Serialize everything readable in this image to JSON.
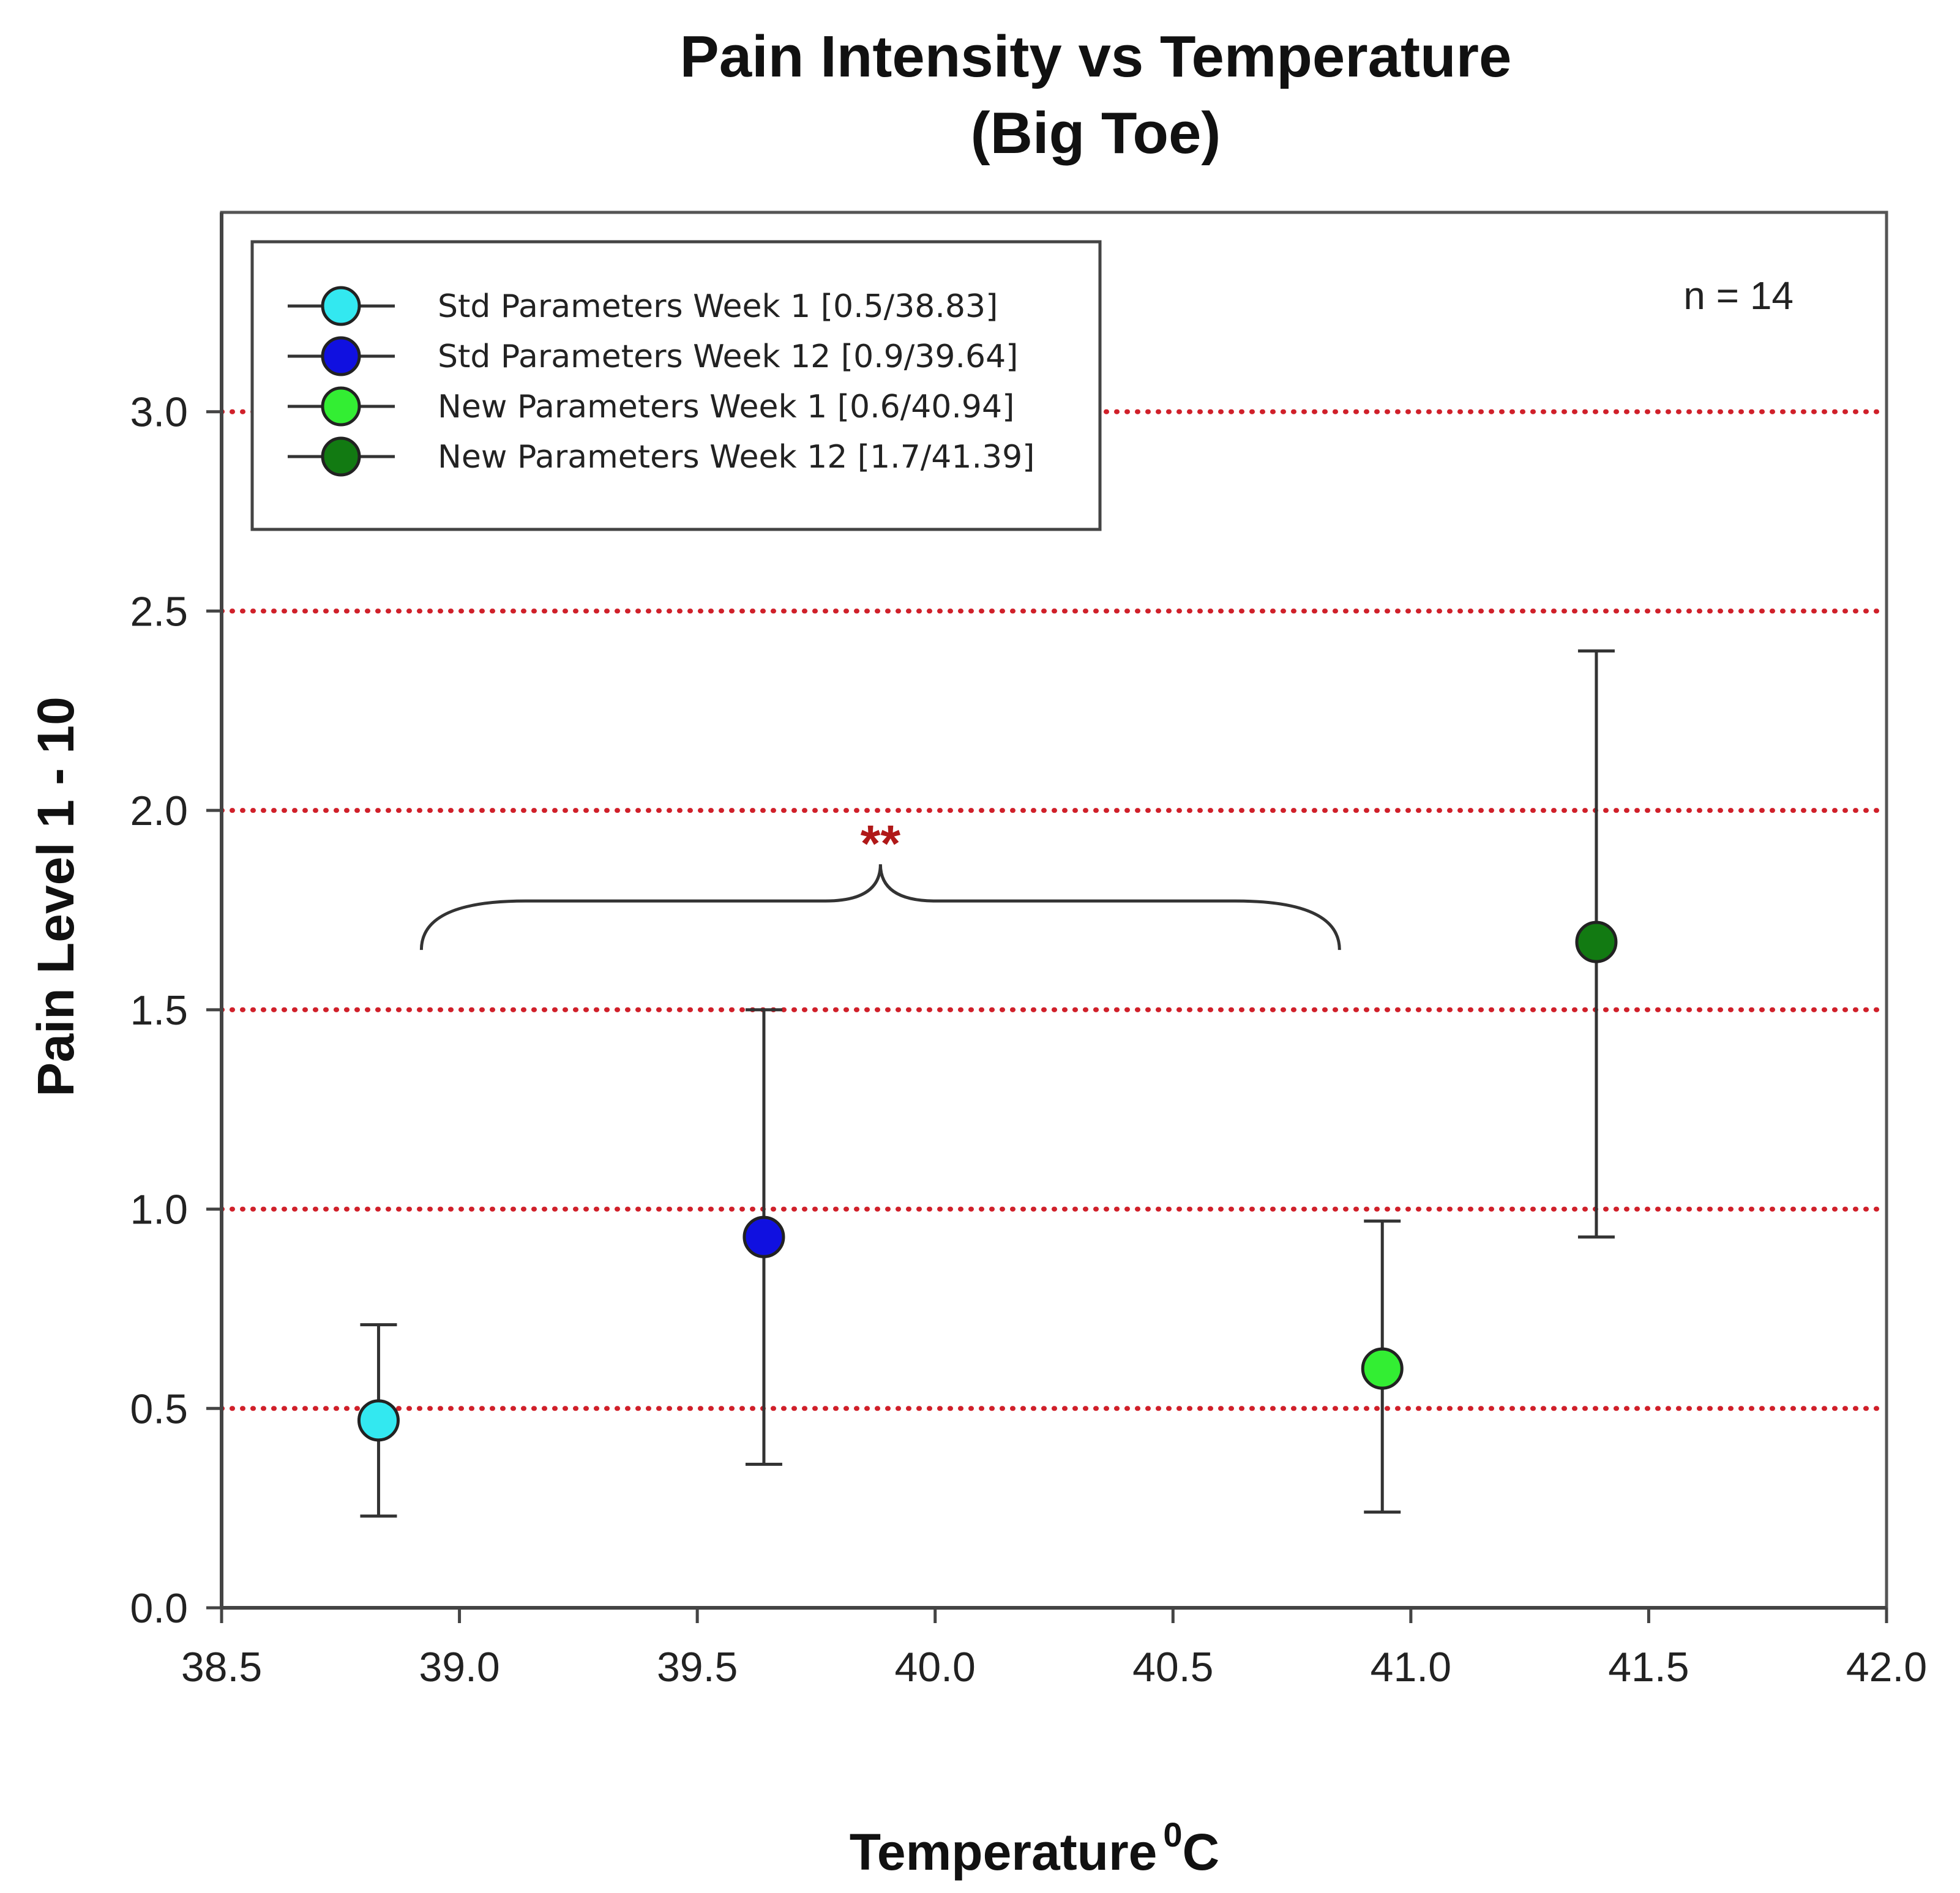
{
  "chart_data": {
    "type": "scatter",
    "title": [
      "Pain Intensity vs Temperature",
      "(Big Toe)"
    ],
    "xlabel": "Temperature",
    "xlabel_superscript": "0",
    "xlabel_unit": "C",
    "ylabel": "Pain Level 1 - 10",
    "xlim": [
      38.5,
      42.0
    ],
    "ylim": [
      0.0,
      3.5
    ],
    "x_ticks": [
      "38.5",
      "39.0",
      "39.5",
      "40.0",
      "40.5",
      "41.0",
      "41.5",
      "42.0"
    ],
    "y_ticks": [
      "0.0",
      "0.5",
      "1.0",
      "1.5",
      "2.0",
      "2.5",
      "3.0"
    ],
    "gridlines_y": [
      0.5,
      1.0,
      1.5,
      2.0,
      2.5,
      3.0
    ],
    "grid_color": "#d0202a",
    "legend_position": "top-left",
    "series": [
      {
        "name": "Std Parameters Week 1 [0.5/38.83]",
        "x": 38.83,
        "y": 0.47,
        "err_low": 0.23,
        "err_high": 0.71,
        "color": "#33e8f0"
      },
      {
        "name": "Std Parameters Week 12 [0.9/39.64]",
        "x": 39.64,
        "y": 0.93,
        "err_low": 0.36,
        "err_high": 1.5,
        "color": "#1010e0"
      },
      {
        "name": "New Parameters Week 1 [0.6/40.94]",
        "x": 40.94,
        "y": 0.6,
        "err_low": 0.24,
        "err_high": 0.97,
        "color": "#33ee33"
      },
      {
        "name": "New Parameters Week 12 [1.7/41.39]",
        "x": 41.39,
        "y": 1.67,
        "err_low": 0.93,
        "err_high": 2.4,
        "color": "#127a12"
      }
    ],
    "annotations": [
      {
        "text": "n = 14",
        "position": "top-right"
      },
      {
        "text": "**",
        "type": "significance",
        "brace_from": 38.92,
        "brace_to": 40.85,
        "brace_y": 1.65,
        "color": "#b01818"
      }
    ]
  }
}
